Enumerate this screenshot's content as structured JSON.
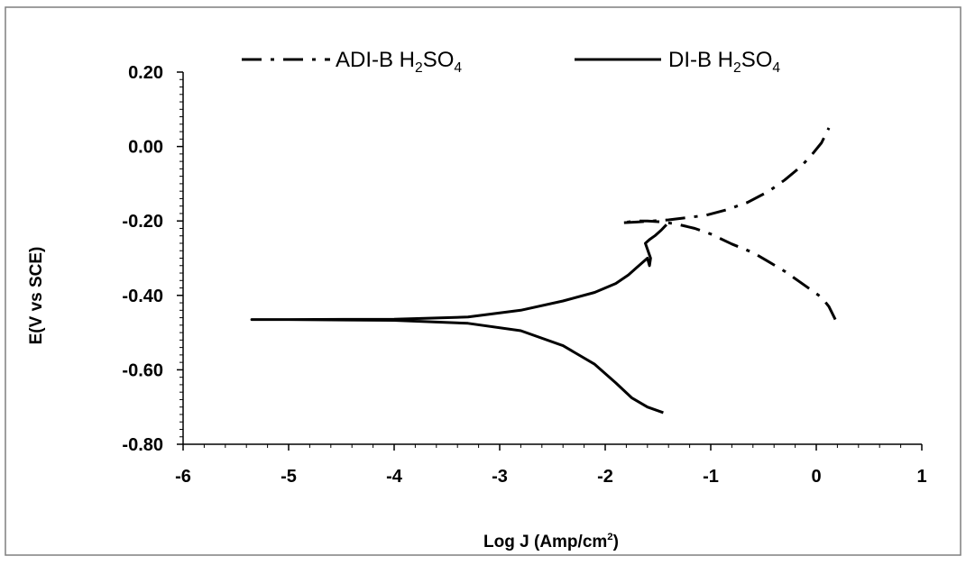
{
  "chart_data": {
    "type": "line",
    "title": "",
    "xlabel": "Log J (Amp/cm²)",
    "ylabel": "E(V vs SCE)",
    "xlim": [
      -6,
      1
    ],
    "ylim": [
      -0.8,
      0.2
    ],
    "xticks": [
      "-6",
      "-5",
      "-4",
      "-3",
      "-2",
      "-1",
      "0",
      "1"
    ],
    "yticks": [
      "-0.80",
      "-0.60",
      "-0.40",
      "-0.20",
      "0.00",
      "0.20"
    ],
    "grid": false,
    "legend_position": "top",
    "series": [
      {
        "name": "ADI-B H₂SO₄",
        "style": "dash-dot",
        "color": "#000000",
        "x": [
          0.18,
          0.12,
          0.05,
          -0.05,
          -0.15,
          -0.3,
          -0.45,
          -0.6,
          -0.8,
          -1.0,
          -1.15,
          -1.3,
          -1.4,
          -1.5,
          -1.6,
          -1.7,
          -1.85,
          -1.7,
          -1.55,
          -1.4,
          -1.25,
          -1.05,
          -0.85,
          -0.65,
          -0.45,
          -0.3,
          -0.15,
          -0.05,
          0.05,
          0.12
        ],
        "y": [
          -0.465,
          -0.43,
          -0.405,
          -0.385,
          -0.365,
          -0.335,
          -0.31,
          -0.285,
          -0.262,
          -0.235,
          -0.22,
          -0.21,
          -0.205,
          -0.202,
          -0.2,
          -0.2,
          -0.205,
          -0.203,
          -0.2,
          -0.197,
          -0.192,
          -0.185,
          -0.17,
          -0.15,
          -0.12,
          -0.09,
          -0.055,
          -0.025,
          0.01,
          0.05
        ]
      },
      {
        "name": "DI-B H₂SO₄",
        "style": "solid",
        "color": "#000000",
        "x": [
          -1.45,
          -1.6,
          -1.75,
          -1.9,
          -2.1,
          -2.4,
          -2.8,
          -3.3,
          -4.0,
          -5.0,
          -5.35,
          -5.0,
          -4.0,
          -3.3,
          -2.8,
          -2.4,
          -2.1,
          -1.9,
          -1.78,
          -1.7,
          -1.64,
          -1.6,
          -1.58,
          -1.57,
          -1.62,
          -1.58,
          -1.53,
          -1.47,
          -1.42
        ],
        "y": [
          -0.715,
          -0.7,
          -0.675,
          -0.635,
          -0.585,
          -0.535,
          -0.495,
          -0.475,
          -0.467,
          -0.465,
          -0.465,
          -0.465,
          -0.464,
          -0.458,
          -0.44,
          -0.415,
          -0.392,
          -0.368,
          -0.345,
          -0.325,
          -0.31,
          -0.3,
          -0.32,
          -0.3,
          -0.26,
          -0.25,
          -0.24,
          -0.225,
          -0.21
        ]
      }
    ]
  }
}
